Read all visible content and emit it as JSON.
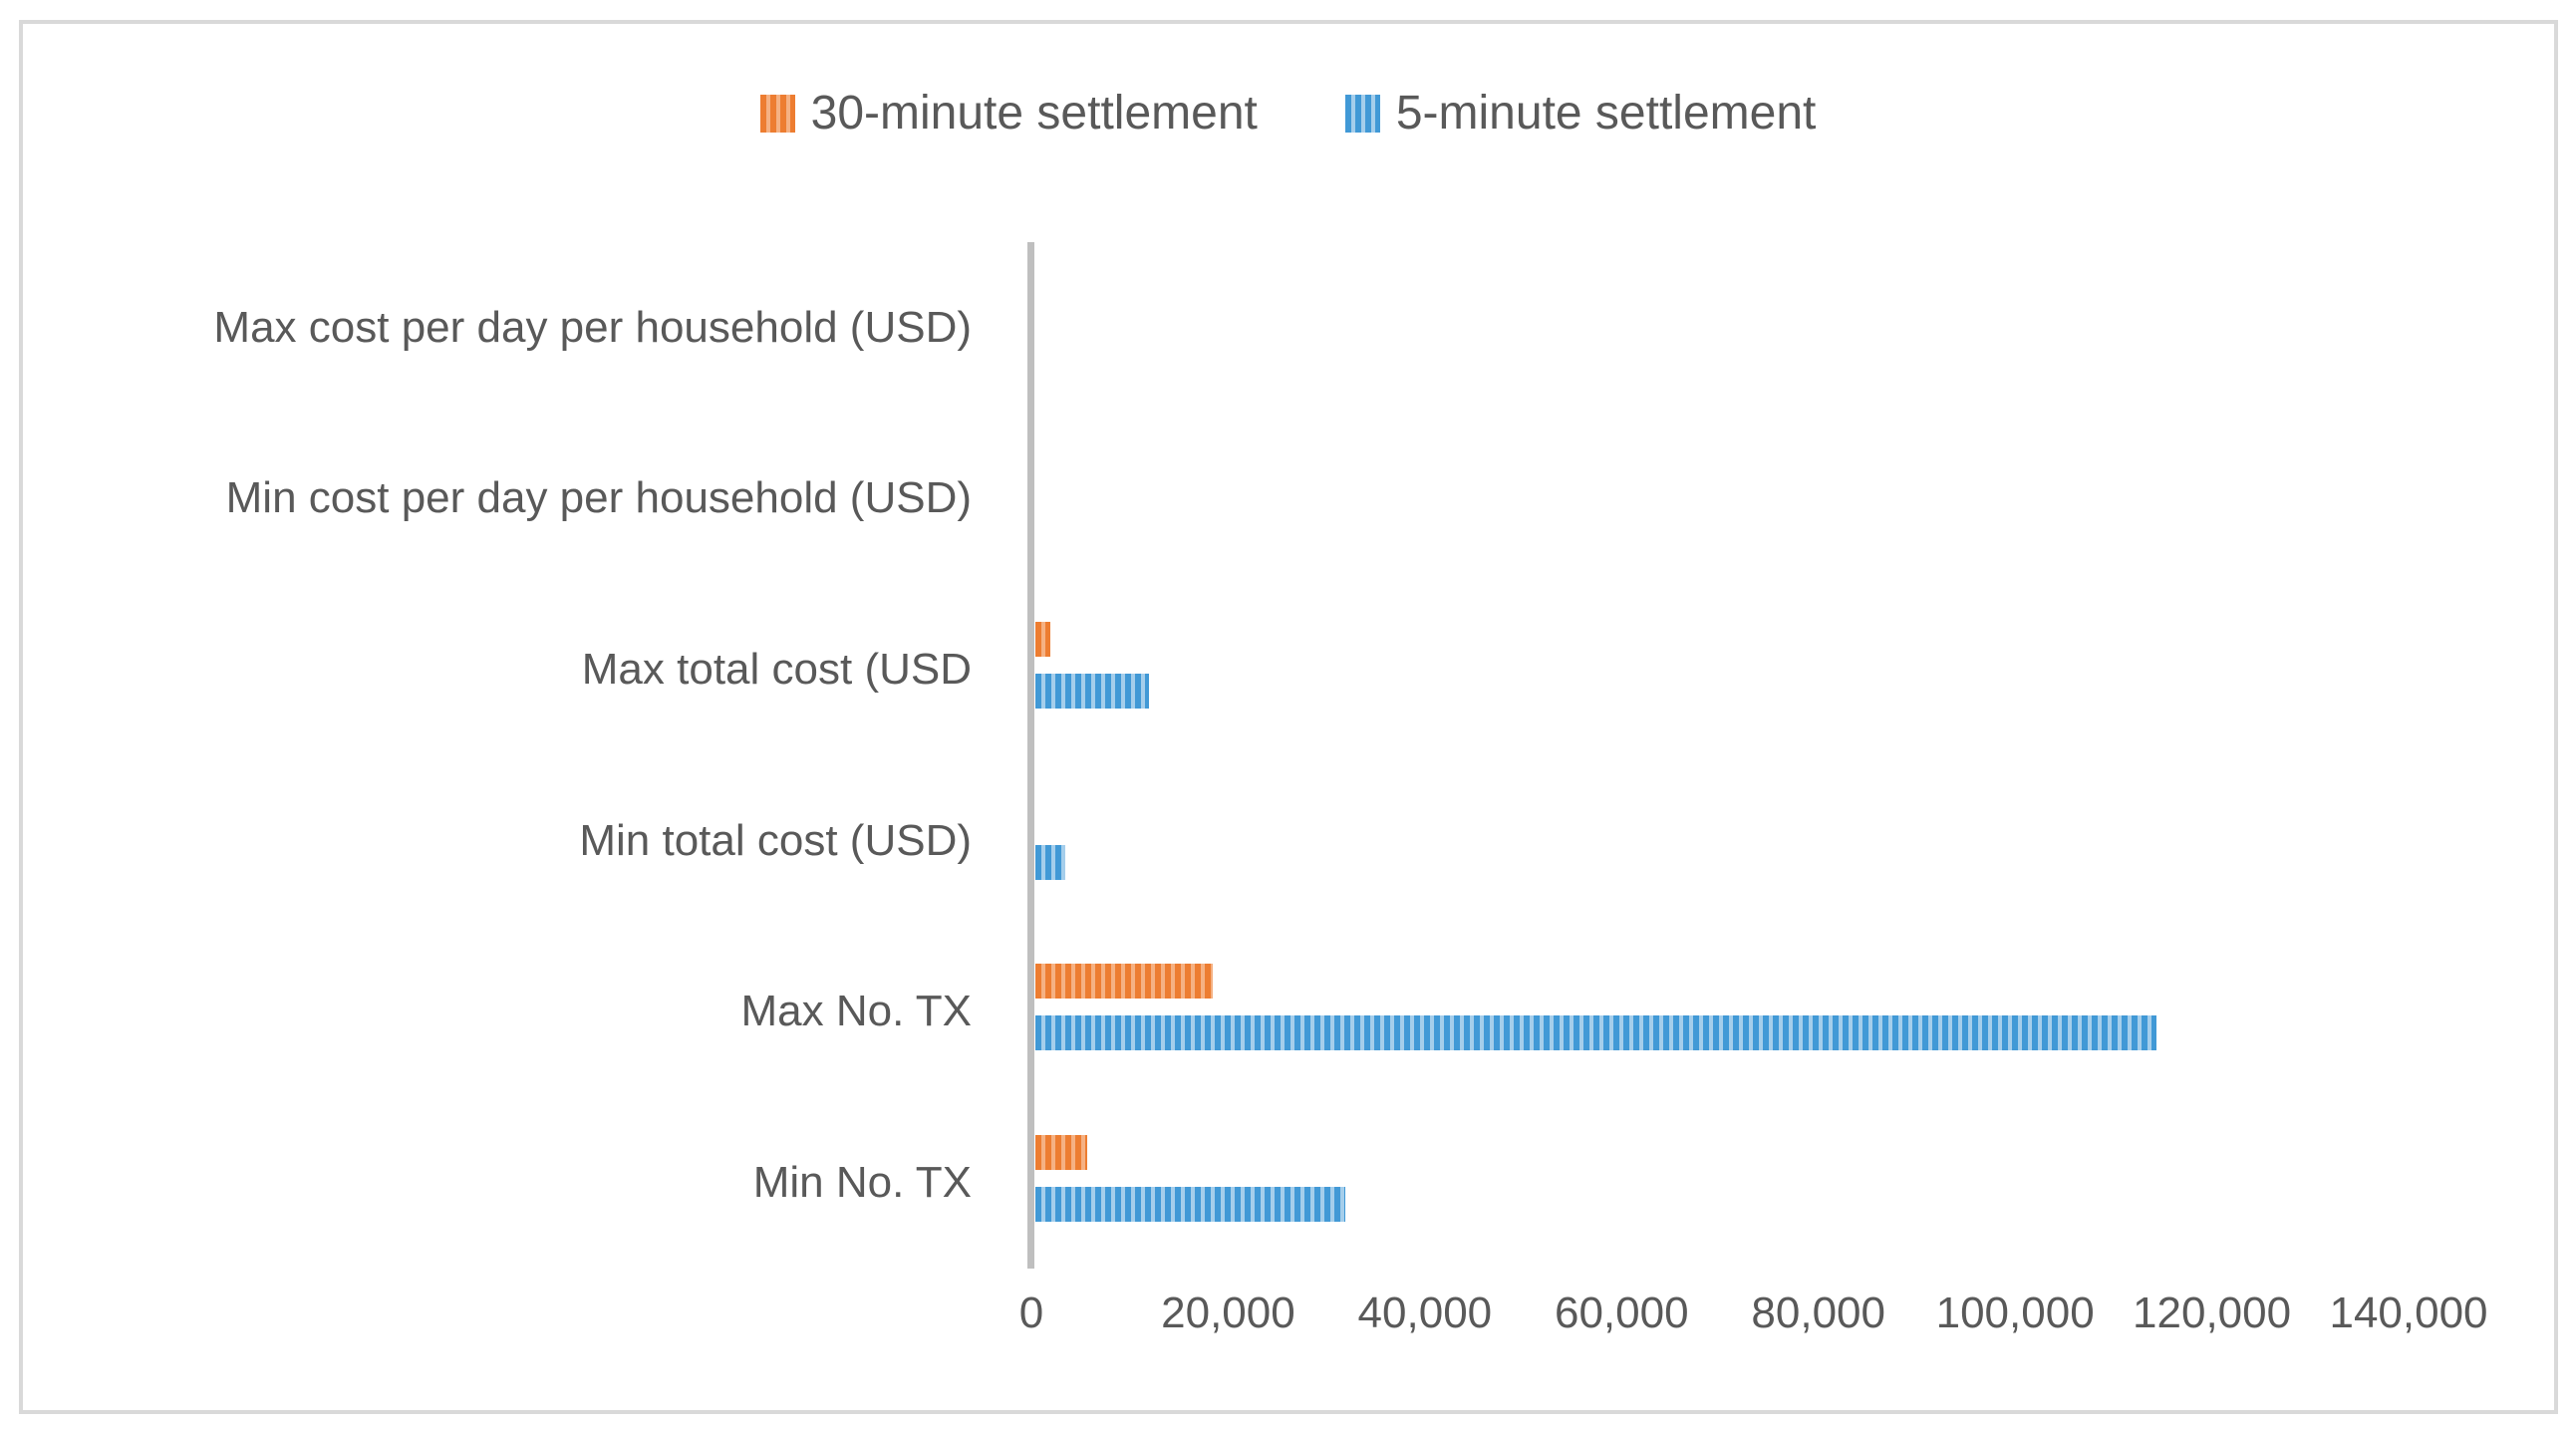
{
  "chart_data": {
    "type": "bar",
    "orientation": "horizontal",
    "title": "",
    "xlabel": "",
    "ylabel": "",
    "categories": [
      "Max cost per day per household (USD)",
      "Min cost per day per household (USD)",
      "Max total cost (USD",
      "Min total cost (USD)",
      "Max No. TX",
      "Min No. TX"
    ],
    "series": [
      {
        "name": "30-minute settlement",
        "color": "#ED7D31",
        "color_light": "#F5B183",
        "values": [
          0,
          0,
          1500,
          0,
          18000,
          5300
        ]
      },
      {
        "name": "5-minute settlement",
        "color": "#4199D6",
        "color_light": "#A5CEEB",
        "values": [
          0,
          0,
          11500,
          3000,
          114000,
          31500
        ]
      }
    ],
    "xlim": [
      0,
      140000
    ],
    "xticks": [
      0,
      20000,
      40000,
      60000,
      80000,
      100000,
      120000,
      140000
    ],
    "xtick_labels": [
      "0",
      "20,000",
      "40,000",
      "60,000",
      "80,000",
      "100,000",
      "120,000",
      "140,000"
    ],
    "legend_position": "top-center",
    "grid": false,
    "bar_pattern": "vertical-stripes",
    "axis_color": "#BFBFBF",
    "border_color": "#D9D9D9",
    "text_color": "#595959"
  }
}
